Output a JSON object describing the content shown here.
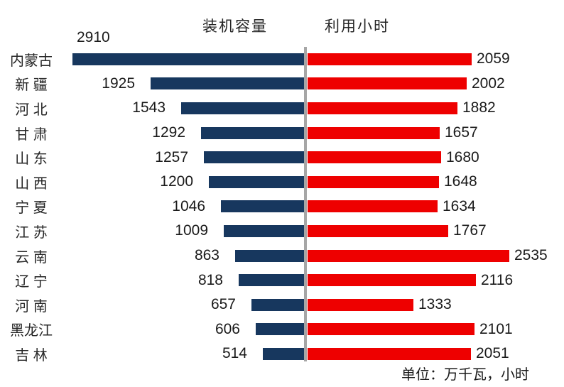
{
  "chart_data": {
    "type": "bar",
    "variant": "diverging-horizontal-tornado",
    "legend": {
      "left": "装机容量",
      "right": "利用小时",
      "position": "top"
    },
    "categories": [
      "内蒙古",
      "新 疆",
      "河 北",
      "甘 肃",
      "山 东",
      "山 西",
      "宁 夏",
      "江 苏",
      "云 南",
      "辽 宁",
      "河 南",
      "黑龙江",
      "吉 林"
    ],
    "series": [
      {
        "name": "装机容量",
        "side": "left",
        "color": "#17375E",
        "values": [
          2910,
          1925,
          1543,
          1292,
          1257,
          1200,
          1046,
          1009,
          863,
          818,
          657,
          606,
          514
        ]
      },
      {
        "name": "利用小时",
        "side": "right",
        "color": "#EE0000",
        "values": [
          2059,
          2002,
          1882,
          1657,
          1680,
          1648,
          1634,
          1767,
          2535,
          2116,
          1333,
          2101,
          2051
        ]
      }
    ],
    "footnote": "单位：万千瓦，小时",
    "axis_color": "#A6A6A6",
    "grid": false,
    "value_labels": "outside"
  }
}
